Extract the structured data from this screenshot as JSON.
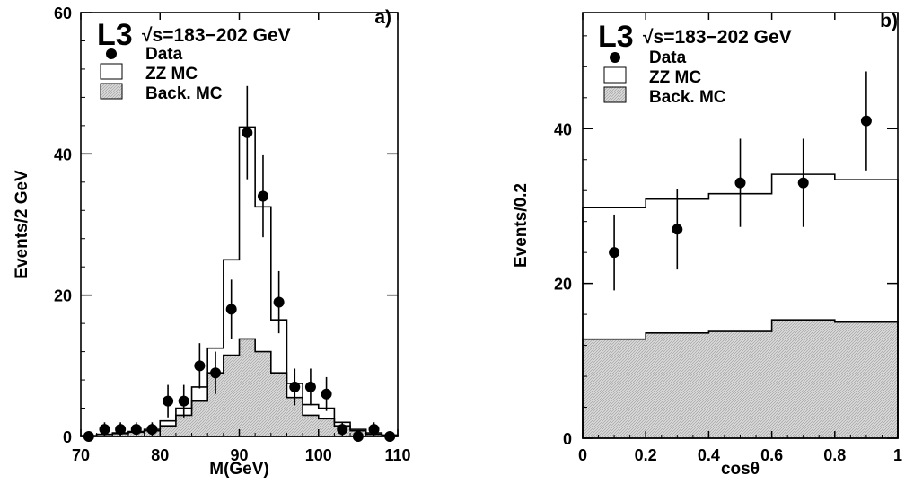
{
  "chart_data": [
    {
      "panel": "a)",
      "type": "histogram",
      "experiment": "L3",
      "energy_label": "√s=183−202 GeV",
      "xlabel": "M(GeV)",
      "ylabel": "Events/2 GeV",
      "xlim": [
        70,
        110
      ],
      "ylim": [
        0,
        60
      ],
      "xticks": [
        "70",
        "80",
        "90",
        "100",
        "110"
      ],
      "yticks": [
        "0",
        "20",
        "40",
        "60"
      ],
      "legend": [
        "Data",
        "ZZ MC",
        "Back. MC"
      ],
      "bin_edges": [
        70,
        72,
        74,
        76,
        78,
        80,
        82,
        84,
        86,
        88,
        90,
        92,
        94,
        96,
        98,
        100,
        102,
        104,
        106,
        108,
        110
      ],
      "zz_mc": [
        0.1,
        0.3,
        0.5,
        0.7,
        1.0,
        2.2,
        4.0,
        7.0,
        12.5,
        25.0,
        43.8,
        32.5,
        16.5,
        7.5,
        4.5,
        4.0,
        2.0,
        1.0,
        0.5,
        0.2
      ],
      "back_mc": [
        0.1,
        0.3,
        0.4,
        0.6,
        0.8,
        1.5,
        3.0,
        5.0,
        9.0,
        11.5,
        13.8,
        12.0,
        9.0,
        5.5,
        3.0,
        2.5,
        1.5,
        0.8,
        0.3,
        0.1
      ],
      "data": {
        "x": [
          71,
          73,
          75,
          77,
          79,
          81,
          83,
          85,
          87,
          89,
          91,
          93,
          95,
          97,
          99,
          101,
          103,
          105,
          107,
          109
        ],
        "y": [
          0,
          1,
          1,
          1,
          1,
          5,
          5,
          10,
          9,
          18,
          43,
          34,
          19,
          7,
          7,
          6,
          1,
          0,
          1,
          0
        ],
        "yerr": [
          0,
          1,
          1,
          1,
          1,
          2.3,
          2.3,
          3.2,
          3.0,
          4.2,
          6.6,
          5.8,
          4.4,
          2.6,
          2.6,
          2.4,
          1,
          0,
          1,
          0
        ]
      }
    },
    {
      "panel": "b)",
      "type": "histogram",
      "experiment": "L3",
      "energy_label": "√s=183−202 GeV",
      "xlabel": "cosθ",
      "ylabel": "Events/0.2",
      "xlim": [
        0,
        1
      ],
      "ylim": [
        0,
        55
      ],
      "xticks": [
        "0",
        "0.2",
        "0.4",
        "0.6",
        "0.8",
        "1"
      ],
      "yticks": [
        "0",
        "20",
        "40"
      ],
      "legend": [
        "Data",
        "ZZ MC",
        "Back. MC"
      ],
      "bin_edges": [
        0,
        0.2,
        0.4,
        0.6,
        0.8,
        1.0
      ],
      "zz_mc": [
        29.8,
        30.9,
        31.6,
        34.1,
        33.4
      ],
      "back_mc": [
        12.8,
        13.6,
        13.8,
        15.3,
        15.0
      ],
      "data": {
        "x": [
          0.1,
          0.3,
          0.5,
          0.7,
          0.9
        ],
        "y": [
          24,
          27,
          33,
          33,
          41
        ],
        "yerr": [
          4.9,
          5.2,
          5.7,
          5.7,
          6.4
        ]
      }
    }
  ]
}
